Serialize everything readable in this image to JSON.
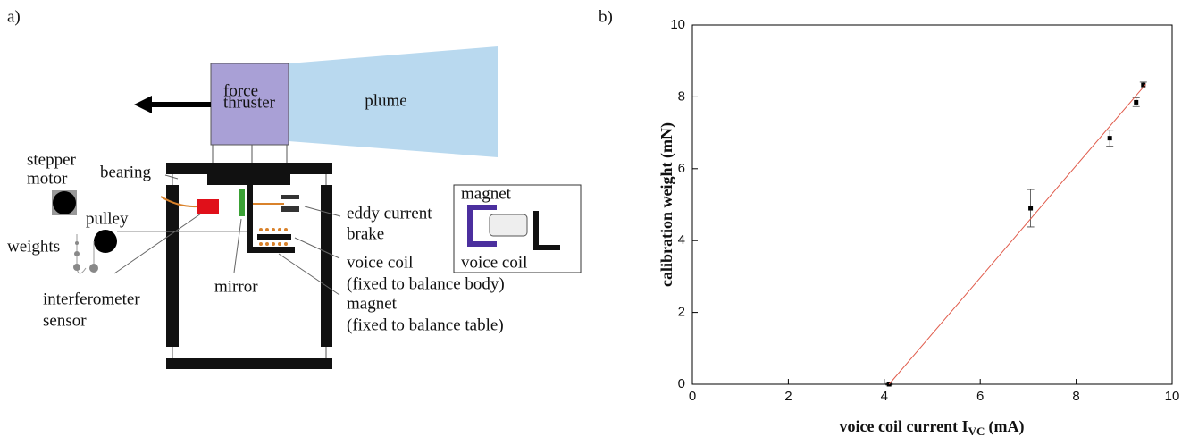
{
  "diagram": {
    "panel_label": "a)",
    "force": "force",
    "thruster": "thruster",
    "plume": "plume",
    "stepper_motor": [
      "stepper",
      "motor"
    ],
    "bearing": "bearing",
    "pulley": "pulley",
    "weights": "weights",
    "interferometer_sensor": [
      "interferometer",
      "sensor"
    ],
    "mirror": "mirror",
    "eddy_current_brake": [
      "eddy current",
      "brake"
    ],
    "voice_coil": [
      "voice coil",
      "(fixed to balance body)"
    ],
    "magnet": [
      "magnet",
      "(fixed to balance table)"
    ],
    "inset": {
      "magnet": "magnet",
      "voice_coil": "voice coil"
    }
  },
  "chart_data": {
    "type": "scatter",
    "panel_label": "b)",
    "x_label": "voice coil current I",
    "x_label_sub": "VC",
    "x_label_unit": "(mA)",
    "y_label": "calibration weight (mN)",
    "xlim": [
      0,
      10
    ],
    "ylim": [
      0,
      10
    ],
    "xticks": [
      0,
      2,
      4,
      6,
      8,
      10
    ],
    "yticks": [
      0,
      2,
      4,
      6,
      8,
      10
    ],
    "series": [
      {
        "type": "scatter",
        "color": "#000000",
        "x": [
          4.1,
          7.05,
          8.7,
          9.25,
          9.4
        ],
        "values": [
          0,
          4.9,
          6.85,
          7.85,
          8.33
        ],
        "errors": [
          0.02,
          0.52,
          0.22,
          0.12,
          0.08
        ]
      },
      {
        "type": "line",
        "color": "#e05a4a",
        "x": [
          4.1,
          9.45
        ],
        "values": [
          0,
          8.35
        ]
      }
    ]
  }
}
